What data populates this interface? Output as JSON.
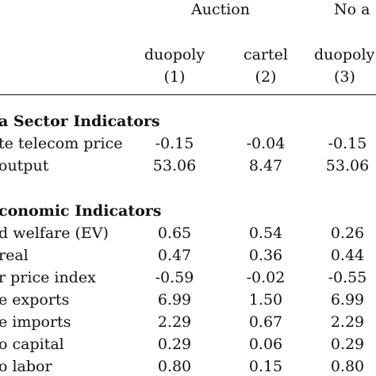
{
  "header": {
    "group_auction": "Auction",
    "group_no_auction": "No a",
    "columns": [
      {
        "label": "duopoly",
        "num": "(1)"
      },
      {
        "label": "cartel",
        "num": "(2)"
      },
      {
        "label": "duopoly",
        "num": "(3)"
      }
    ]
  },
  "sections": [
    {
      "title": "a Sector Indicators",
      "rows": [
        {
          "label": "te telecom price",
          "values": [
            "-0.15",
            "-0.04",
            "-0.15"
          ]
        },
        {
          "label": "output",
          "values": [
            "53.06",
            "8.47",
            "53.06"
          ]
        }
      ]
    },
    {
      "title": "conomic Indicators",
      "rows": [
        {
          "label": "d welfare (EV)",
          "values": [
            "0.65",
            "0.54",
            "0.26"
          ]
        },
        {
          "label": "real",
          "values": [
            "0.47",
            "0.36",
            "0.44"
          ]
        },
        {
          "label": "r price index",
          "values": [
            "-0.59",
            "-0.02",
            "-0.55"
          ]
        },
        {
          "label": "e exports",
          "values": [
            "6.99",
            "1.50",
            "6.99"
          ]
        },
        {
          "label": "e imports",
          "values": [
            "2.29",
            "0.67",
            "2.29"
          ]
        },
        {
          "label": "o capital",
          "values": [
            "0.29",
            "0.06",
            "0.29"
          ]
        },
        {
          "label": "o labor",
          "values": [
            "0.80",
            "0.15",
            "0.80"
          ]
        }
      ]
    }
  ]
}
